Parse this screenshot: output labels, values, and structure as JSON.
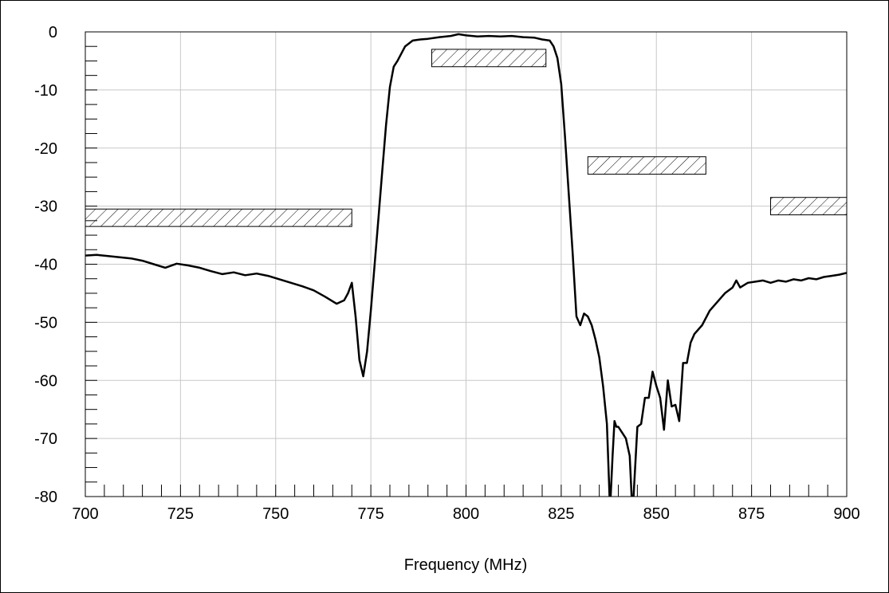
{
  "chart_data": {
    "type": "line",
    "title": "",
    "xlabel": "Frequency (MHz)",
    "ylabel": "",
    "xlim": [
      700,
      900
    ],
    "ylim": [
      -80,
      0
    ],
    "xticks": [
      700,
      725,
      750,
      775,
      800,
      825,
      850,
      875,
      900
    ],
    "xtick_labels": [
      "700",
      "725",
      "750",
      "775",
      "800",
      "825",
      "850",
      "875",
      "900"
    ],
    "yticks": [
      0,
      -10,
      -20,
      -30,
      -40,
      -50,
      -60,
      -70,
      -80
    ],
    "ytick_labels": [
      "0",
      "-10",
      "-20",
      "-30",
      "-40",
      "-50",
      "-60",
      "-70",
      "-80"
    ],
    "grid": true,
    "series": [
      {
        "color": "#000000",
        "x": [
          700,
          703,
          706,
          709,
          712,
          715,
          718,
          721,
          724,
          727,
          730,
          733,
          736,
          739,
          742,
          745,
          748,
          751,
          754,
          757,
          760,
          763,
          766,
          768,
          769,
          770,
          771,
          772,
          773,
          774,
          775,
          776,
          777,
          778,
          779,
          780,
          781,
          782,
          784,
          786,
          788,
          790,
          793,
          796,
          798,
          800,
          803,
          806,
          809,
          812,
          815,
          818,
          820,
          822,
          823,
          824,
          825,
          826,
          827,
          828,
          829,
          830,
          831,
          832,
          833,
          834,
          835,
          836,
          837,
          837.7,
          838,
          838.5,
          839,
          839.5,
          840,
          841,
          842,
          843,
          843.5,
          844,
          845,
          846,
          847,
          848,
          849,
          850,
          851,
          852,
          853,
          854,
          855,
          856,
          857,
          858,
          859,
          860,
          862,
          864,
          866,
          868,
          870,
          871,
          872,
          874,
          876,
          878,
          880,
          882,
          884,
          886,
          888,
          890,
          892,
          894,
          896,
          898,
          900
        ],
        "y": [
          -38.5,
          -38.4,
          -38.6,
          -38.8,
          -39.0,
          -39.4,
          -40.0,
          -40.6,
          -39.9,
          -40.2,
          -40.6,
          -41.2,
          -41.7,
          -41.4,
          -41.9,
          -41.6,
          -42.0,
          -42.6,
          -43.2,
          -43.8,
          -44.5,
          -45.6,
          -46.8,
          -46.2,
          -45.0,
          -43.2,
          -49.0,
          -56.5,
          -59.3,
          -55.0,
          -48.0,
          -40.0,
          -32.0,
          -24.0,
          -16.0,
          -9.5,
          -6.0,
          -5.0,
          -2.5,
          -1.5,
          -1.3,
          -1.2,
          -0.9,
          -0.7,
          -0.4,
          -0.6,
          -0.8,
          -0.7,
          -0.8,
          -0.7,
          -0.9,
          -1.0,
          -1.3,
          -1.5,
          -2.5,
          -4.5,
          -9.0,
          -18.0,
          -28.0,
          -38.0,
          -49.0,
          -50.5,
          -48.5,
          -49.0,
          -50.5,
          -53.0,
          -56.0,
          -61.0,
          -67.5,
          -80.0,
          -80.0,
          -73.0,
          -67.0,
          -68.0,
          -68.0,
          -69.0,
          -70.0,
          -73.0,
          -80.0,
          -80.0,
          -68.0,
          -67.5,
          -63.0,
          -63.0,
          -58.5,
          -61.0,
          -63.0,
          -68.5,
          -60.0,
          -64.5,
          -64.2,
          -67.0,
          -57.0,
          -57.0,
          -53.5,
          -52.0,
          -50.5,
          -48.0,
          -46.5,
          -45.0,
          -44.0,
          -42.8,
          -44.0,
          -43.2,
          -43.0,
          -42.8,
          -43.2,
          -42.8,
          -43.0,
          -42.6,
          -42.8,
          -42.4,
          -42.6,
          -42.2,
          -42.0,
          -41.8,
          -41.5
        ]
      }
    ],
    "spec_masks": [
      {
        "x_start": 700,
        "x_end": 770,
        "y_top": -30.5,
        "y_bottom": -33.5
      },
      {
        "x_start": 791,
        "x_end": 821,
        "y_top": -3.0,
        "y_bottom": -6.0
      },
      {
        "x_start": 832,
        "x_end": 863,
        "y_top": -21.5,
        "y_bottom": -24.5
      },
      {
        "x_start": 880,
        "x_end": 900,
        "y_top": -28.5,
        "y_bottom": -31.5
      }
    ]
  }
}
